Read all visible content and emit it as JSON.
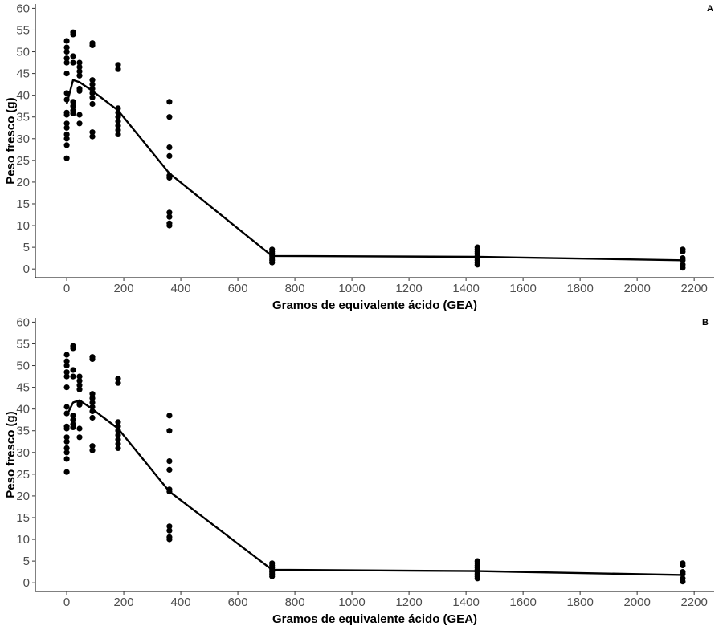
{
  "chart_data": [
    {
      "type": "scatter",
      "panel_label": "A",
      "xlabel": "Gramos de equivalente ácido (GEA)",
      "ylabel": "Peso fresco (g)",
      "xlim": [
        -110,
        2270
      ],
      "ylim": [
        -2,
        61
      ],
      "xticks": [
        0,
        200,
        400,
        600,
        800,
        1000,
        1200,
        1400,
        1600,
        1800,
        2000,
        2200
      ],
      "yticks": [
        0,
        5,
        10,
        15,
        20,
        25,
        30,
        35,
        40,
        45,
        50,
        55,
        60
      ],
      "grid": false,
      "series": [
        {
          "kind": "points",
          "points": [
            [
              0,
              25.5
            ],
            [
              0,
              28.5
            ],
            [
              0,
              30.0
            ],
            [
              0,
              31.0
            ],
            [
              0,
              32.5
            ],
            [
              0,
              33.5
            ],
            [
              0,
              35.5
            ],
            [
              0,
              36.0
            ],
            [
              0,
              39.0
            ],
            [
              0,
              40.5
            ],
            [
              0,
              45.0
            ],
            [
              0,
              47.5
            ],
            [
              0,
              48.5
            ],
            [
              0,
              50.0
            ],
            [
              0,
              51.0
            ],
            [
              0,
              52.5
            ],
            [
              22.5,
              35.8
            ],
            [
              22.5,
              36.5
            ],
            [
              22.5,
              37.5
            ],
            [
              22.5,
              38.5
            ],
            [
              22.5,
              47.5
            ],
            [
              22.5,
              49.0
            ],
            [
              22.5,
              54.0
            ],
            [
              22.5,
              54.5
            ],
            [
              45,
              33.5
            ],
            [
              45,
              35.5
            ],
            [
              45,
              41.0
            ],
            [
              45,
              41.5
            ],
            [
              45,
              44.5
            ],
            [
              45,
              45.5
            ],
            [
              45,
              46.5
            ],
            [
              45,
              47.5
            ],
            [
              90,
              30.5
            ],
            [
              90,
              31.5
            ],
            [
              90,
              38.0
            ],
            [
              90,
              39.5
            ],
            [
              90,
              40.5
            ],
            [
              90,
              41.5
            ],
            [
              90,
              42.5
            ],
            [
              90,
              43.5
            ],
            [
              90,
              51.5
            ],
            [
              90,
              52.0
            ],
            [
              180,
              31.0
            ],
            [
              180,
              32.0
            ],
            [
              180,
              33.0
            ],
            [
              180,
              34.0
            ],
            [
              180,
              35.0
            ],
            [
              180,
              36.0
            ],
            [
              180,
              37.0
            ],
            [
              180,
              46.0
            ],
            [
              180,
              47.0
            ],
            [
              360,
              10.0
            ],
            [
              360,
              10.5
            ],
            [
              360,
              12.0
            ],
            [
              360,
              13.0
            ],
            [
              360,
              21.0
            ],
            [
              360,
              21.5
            ],
            [
              360,
              26.0
            ],
            [
              360,
              28.0
            ],
            [
              360,
              35.0
            ],
            [
              360,
              38.5
            ],
            [
              720,
              1.5
            ],
            [
              720,
              2.0
            ],
            [
              720,
              2.5
            ],
            [
              720,
              3.0
            ],
            [
              720,
              3.5
            ],
            [
              720,
              4.0
            ],
            [
              720,
              4.5
            ],
            [
              1440,
              1.0
            ],
            [
              1440,
              1.5
            ],
            [
              1440,
              2.0
            ],
            [
              1440,
              2.5
            ],
            [
              1440,
              3.0
            ],
            [
              1440,
              3.5
            ],
            [
              1440,
              4.0
            ],
            [
              1440,
              4.5
            ],
            [
              1440,
              5.0
            ],
            [
              2160,
              0.3
            ],
            [
              2160,
              1.0
            ],
            [
              2160,
              2.0
            ],
            [
              2160,
              2.5
            ],
            [
              2160,
              4.0
            ],
            [
              2160,
              4.5
            ]
          ]
        },
        {
          "kind": "line",
          "points": [
            [
              0,
              38.0
            ],
            [
              22.5,
              43.5
            ],
            [
              45,
              43.0
            ],
            [
              90,
              41.0
            ],
            [
              180,
              36.5
            ],
            [
              360,
              22.0
            ],
            [
              720,
              3.0
            ],
            [
              1440,
              2.8
            ],
            [
              2160,
              2.0
            ]
          ]
        }
      ]
    },
    {
      "type": "scatter",
      "panel_label": "B",
      "xlabel": "Gramos de equivalente ácido (GEA)",
      "ylabel": "Peso fresco (g)",
      "xlim": [
        -110,
        2270
      ],
      "ylim": [
        -2,
        61
      ],
      "xticks": [
        0,
        200,
        400,
        600,
        800,
        1000,
        1200,
        1400,
        1600,
        1800,
        2000,
        2200
      ],
      "yticks": [
        0,
        5,
        10,
        15,
        20,
        25,
        30,
        35,
        40,
        45,
        50,
        55,
        60
      ],
      "grid": false,
      "series": [
        {
          "kind": "points",
          "points": [
            [
              0,
              25.5
            ],
            [
              0,
              28.5
            ],
            [
              0,
              30.0
            ],
            [
              0,
              31.0
            ],
            [
              0,
              32.5
            ],
            [
              0,
              33.5
            ],
            [
              0,
              35.5
            ],
            [
              0,
              36.0
            ],
            [
              0,
              39.0
            ],
            [
              0,
              40.5
            ],
            [
              0,
              45.0
            ],
            [
              0,
              47.5
            ],
            [
              0,
              48.5
            ],
            [
              0,
              50.0
            ],
            [
              0,
              51.0
            ],
            [
              0,
              52.5
            ],
            [
              22.5,
              35.8
            ],
            [
              22.5,
              36.5
            ],
            [
              22.5,
              37.5
            ],
            [
              22.5,
              38.5
            ],
            [
              22.5,
              47.5
            ],
            [
              22.5,
              49.0
            ],
            [
              22.5,
              54.0
            ],
            [
              22.5,
              54.5
            ],
            [
              45,
              33.5
            ],
            [
              45,
              35.5
            ],
            [
              45,
              41.0
            ],
            [
              45,
              41.5
            ],
            [
              45,
              44.5
            ],
            [
              45,
              45.5
            ],
            [
              45,
              46.5
            ],
            [
              45,
              47.5
            ],
            [
              90,
              30.5
            ],
            [
              90,
              31.5
            ],
            [
              90,
              38.0
            ],
            [
              90,
              39.5
            ],
            [
              90,
              40.5
            ],
            [
              90,
              41.5
            ],
            [
              90,
              42.5
            ],
            [
              90,
              43.5
            ],
            [
              90,
              51.5
            ],
            [
              90,
              52.0
            ],
            [
              180,
              31.0
            ],
            [
              180,
              32.0
            ],
            [
              180,
              33.0
            ],
            [
              180,
              34.0
            ],
            [
              180,
              35.0
            ],
            [
              180,
              36.0
            ],
            [
              180,
              37.0
            ],
            [
              180,
              46.0
            ],
            [
              180,
              47.0
            ],
            [
              360,
              10.0
            ],
            [
              360,
              10.5
            ],
            [
              360,
              12.0
            ],
            [
              360,
              13.0
            ],
            [
              360,
              21.0
            ],
            [
              360,
              21.5
            ],
            [
              360,
              26.0
            ],
            [
              360,
              28.0
            ],
            [
              360,
              35.0
            ],
            [
              360,
              38.5
            ],
            [
              720,
              1.5
            ],
            [
              720,
              2.0
            ],
            [
              720,
              2.5
            ],
            [
              720,
              3.0
            ],
            [
              720,
              3.5
            ],
            [
              720,
              4.0
            ],
            [
              720,
              4.5
            ],
            [
              1440,
              1.0
            ],
            [
              1440,
              1.5
            ],
            [
              1440,
              2.0
            ],
            [
              1440,
              2.5
            ],
            [
              1440,
              3.0
            ],
            [
              1440,
              3.5
            ],
            [
              1440,
              4.0
            ],
            [
              1440,
              4.5
            ],
            [
              1440,
              5.0
            ],
            [
              2160,
              0.3
            ],
            [
              2160,
              1.0
            ],
            [
              2160,
              2.0
            ],
            [
              2160,
              2.5
            ],
            [
              2160,
              4.0
            ],
            [
              2160,
              4.5
            ]
          ]
        },
        {
          "kind": "line",
          "points": [
            [
              0,
              38.5
            ],
            [
              22.5,
              41.5
            ],
            [
              45,
              42.0
            ],
            [
              90,
              40.0
            ],
            [
              180,
              35.5
            ],
            [
              360,
              21.0
            ],
            [
              720,
              3.0
            ],
            [
              1440,
              2.7
            ],
            [
              2160,
              1.8
            ]
          ]
        }
      ]
    }
  ]
}
